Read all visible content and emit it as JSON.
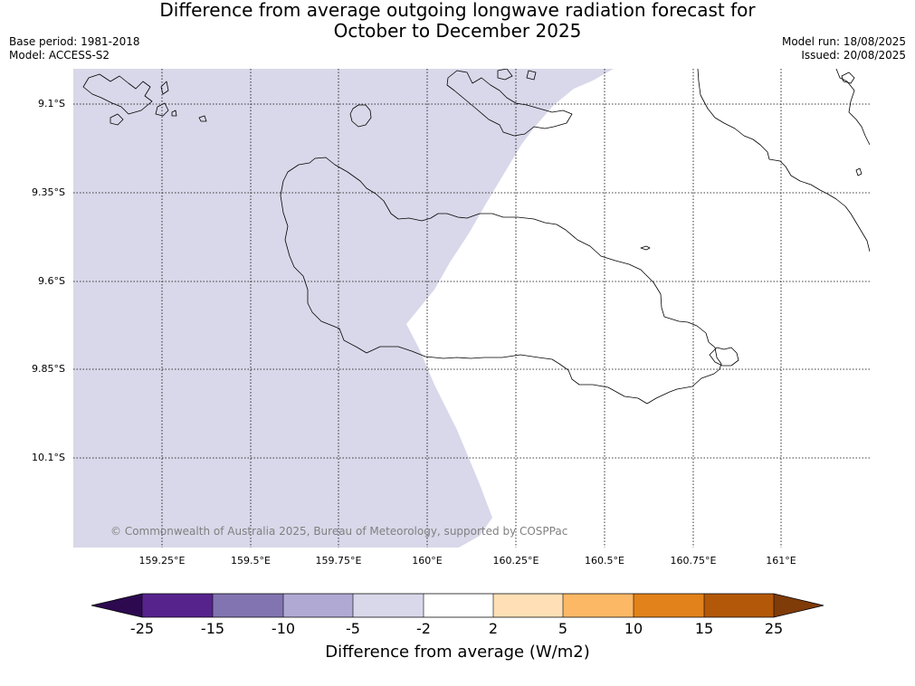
{
  "title_line1": "Difference from average outgoing longwave radiation forecast for",
  "title_line2": "October to December 2025",
  "meta_left": {
    "base_period": "Base period: 1981-2018",
    "model": "Model: ACCESS-S2"
  },
  "meta_right": {
    "model_run": "Model run: 18/08/2025",
    "issued": "Issued: 20/08/2025"
  },
  "map": {
    "longitude_ticks": [
      "159.25°E",
      "159.5°E",
      "159.75°E",
      "160°E",
      "160.25°E",
      "160.5°E",
      "160.75°E",
      "161°E"
    ],
    "latitude_ticks": [
      "9.1°S",
      "9.35°S",
      "9.6°S",
      "9.85°S",
      "10.1°S"
    ],
    "copyright": "© Commonwealth of Australia 2025, Bureau of Meteorology, supported by COSPPac",
    "shaded_region": {
      "category": "-5 to -2",
      "color": "#d8d8ea"
    }
  },
  "colorbar": {
    "title": "Difference from average (W/m2)",
    "tick_labels": [
      "-25",
      "-15",
      "-10",
      "-5",
      "-2",
      "2",
      "5",
      "10",
      "15",
      "25"
    ],
    "colors": [
      "#2d0a50",
      "#56238d",
      "#8274b0",
      "#b0a9d3",
      "#d8d8ea",
      "#ffffff",
      "#ffe0b6",
      "#fdb866",
      "#e1821a",
      "#b35808",
      "#7f3b08"
    ]
  }
}
